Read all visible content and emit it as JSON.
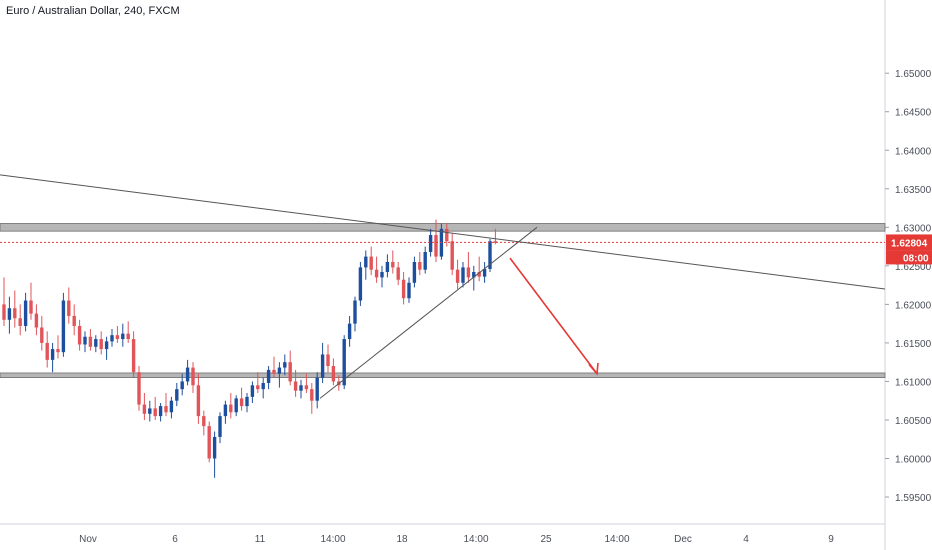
{
  "header": {
    "title": "Euro / Australian Dollar, 240, FXCM"
  },
  "colors": {
    "up": "#1e4f9e",
    "down": "#e0545a",
    "zone": "#9e9e9e",
    "arrow": "#e53935",
    "trend": "#555555"
  },
  "chart_data": {
    "type": "candlestick",
    "symbol": "Euro / Australian Dollar",
    "interval": "240",
    "source": "FXCM",
    "ylim": [
      1.5915,
      1.6595
    ],
    "y_ticks": [
      "1.59500",
      "1.60000",
      "1.60500",
      "1.61000",
      "1.61500",
      "1.62000",
      "1.62500",
      "1.63000",
      "1.63500",
      "1.64000",
      "1.64500",
      "1.65000"
    ],
    "x_ticks": [
      "Nov",
      "6",
      "11",
      "14:00",
      "18",
      "14:00",
      "25",
      "14:00",
      "Dec",
      "4",
      "9"
    ],
    "last_price": "1.62804",
    "countdown": "08:00",
    "resistance_zone": [
      1.6295,
      1.6305
    ],
    "support_zone": [
      1.6105,
      1.6111
    ],
    "candles": [
      [
        1.62,
        1.6235,
        1.6172,
        1.618
      ],
      [
        1.618,
        1.621,
        1.6162,
        1.6195
      ],
      [
        1.6195,
        1.6218,
        1.617,
        1.6182
      ],
      [
        1.6182,
        1.62,
        1.616,
        1.6172
      ],
      [
        1.6172,
        1.6215,
        1.6165,
        1.6205
      ],
      [
        1.6205,
        1.6228,
        1.618,
        1.6188
      ],
      [
        1.6188,
        1.62,
        1.616,
        1.617
      ],
      [
        1.617,
        1.6185,
        1.614,
        1.615
      ],
      [
        1.615,
        1.6165,
        1.6118,
        1.6128
      ],
      [
        1.6128,
        1.615,
        1.6112,
        1.6142
      ],
      [
        1.6142,
        1.616,
        1.613,
        1.6138
      ],
      [
        1.6138,
        1.6215,
        1.6132,
        1.6205
      ],
      [
        1.6205,
        1.6222,
        1.6175,
        1.6185
      ],
      [
        1.6185,
        1.62,
        1.616,
        1.6172
      ],
      [
        1.6172,
        1.618,
        1.614,
        1.6148
      ],
      [
        1.6148,
        1.6165,
        1.6138,
        1.6158
      ],
      [
        1.6158,
        1.6168,
        1.614,
        1.6145
      ],
      [
        1.6145,
        1.616,
        1.6138,
        1.6155
      ],
      [
        1.6155,
        1.6165,
        1.6135,
        1.6142
      ],
      [
        1.6142,
        1.6158,
        1.6128,
        1.6152
      ],
      [
        1.6152,
        1.6168,
        1.6145,
        1.616
      ],
      [
        1.616,
        1.6172,
        1.615,
        1.6155
      ],
      [
        1.6155,
        1.6175,
        1.6145,
        1.6162
      ],
      [
        1.6162,
        1.6178,
        1.615,
        1.6155
      ],
      [
        1.6155,
        1.6165,
        1.6105,
        1.6112
      ],
      [
        1.6112,
        1.612,
        1.6062,
        1.607
      ],
      [
        1.607,
        1.6085,
        1.605,
        1.6058
      ],
      [
        1.6058,
        1.6075,
        1.6048,
        1.6065
      ],
      [
        1.6065,
        1.608,
        1.605,
        1.6055
      ],
      [
        1.6055,
        1.6072,
        1.6048,
        1.6068
      ],
      [
        1.6068,
        1.6085,
        1.6055,
        1.606
      ],
      [
        1.606,
        1.608,
        1.6052,
        1.6075
      ],
      [
        1.6075,
        1.6098,
        1.6068,
        1.609
      ],
      [
        1.609,
        1.611,
        1.6082,
        1.61
      ],
      [
        1.61,
        1.6128,
        1.6095,
        1.6118
      ],
      [
        1.6118,
        1.6125,
        1.6085,
        1.6095
      ],
      [
        1.6095,
        1.611,
        1.6045,
        1.6055
      ],
      [
        1.6055,
        1.6062,
        1.603,
        1.6042
      ],
      [
        1.6042,
        1.6048,
        1.5995,
        1.6
      ],
      [
        1.6,
        1.6035,
        1.5975,
        1.6028
      ],
      [
        1.6028,
        1.606,
        1.602,
        1.6055
      ],
      [
        1.6055,
        1.6075,
        1.6045,
        1.607
      ],
      [
        1.607,
        1.6085,
        1.6052,
        1.606
      ],
      [
        1.606,
        1.6082,
        1.6055,
        1.6078
      ],
      [
        1.6078,
        1.6092,
        1.6062,
        1.6068
      ],
      [
        1.6068,
        1.6085,
        1.606,
        1.608
      ],
      [
        1.608,
        1.61,
        1.6072,
        1.6095
      ],
      [
        1.6095,
        1.6112,
        1.6085,
        1.609
      ],
      [
        1.609,
        1.6105,
        1.6078,
        1.6098
      ],
      [
        1.6098,
        1.612,
        1.609,
        1.6115
      ],
      [
        1.6115,
        1.6132,
        1.6105,
        1.611
      ],
      [
        1.611,
        1.6125,
        1.6092,
        1.6118
      ],
      [
        1.6118,
        1.6135,
        1.6108,
        1.6125
      ],
      [
        1.6125,
        1.614,
        1.6095,
        1.61
      ],
      [
        1.61,
        1.6115,
        1.608,
        1.6088
      ],
      [
        1.6088,
        1.6102,
        1.6078,
        1.6095
      ],
      [
        1.6095,
        1.611,
        1.6085,
        1.609
      ],
      [
        1.609,
        1.6098,
        1.6058,
        1.6075
      ],
      [
        1.6075,
        1.6112,
        1.6065,
        1.6105
      ],
      [
        1.6105,
        1.615,
        1.6098,
        1.6135
      ],
      [
        1.6135,
        1.6148,
        1.6112,
        1.612
      ],
      [
        1.612,
        1.613,
        1.6095,
        1.61
      ],
      [
        1.61,
        1.6108,
        1.6088,
        1.6095
      ],
      [
        1.6095,
        1.616,
        1.609,
        1.6155
      ],
      [
        1.6155,
        1.6185,
        1.6145,
        1.6175
      ],
      [
        1.6175,
        1.621,
        1.6165,
        1.6205
      ],
      [
        1.6205,
        1.6255,
        1.6198,
        1.6248
      ],
      [
        1.6248,
        1.627,
        1.6232,
        1.6262
      ],
      [
        1.6262,
        1.6275,
        1.6238,
        1.6245
      ],
      [
        1.6245,
        1.6262,
        1.6228,
        1.6235
      ],
      [
        1.6235,
        1.625,
        1.6222,
        1.6242
      ],
      [
        1.6242,
        1.6265,
        1.6235,
        1.6255
      ],
      [
        1.6255,
        1.627,
        1.624,
        1.6248
      ],
      [
        1.6248,
        1.6255,
        1.6225,
        1.6232
      ],
      [
        1.6232,
        1.6242,
        1.62,
        1.6208
      ],
      [
        1.6208,
        1.6235,
        1.6202,
        1.6228
      ],
      [
        1.6228,
        1.6262,
        1.6222,
        1.6255
      ],
      [
        1.6255,
        1.6268,
        1.6238,
        1.6245
      ],
      [
        1.6245,
        1.6275,
        1.624,
        1.6268
      ],
      [
        1.6268,
        1.6298,
        1.6262,
        1.629
      ],
      [
        1.629,
        1.631,
        1.6255,
        1.6262
      ],
      [
        1.6262,
        1.6305,
        1.6258,
        1.6298
      ],
      [
        1.6298,
        1.6305,
        1.6275,
        1.6282
      ],
      [
        1.6282,
        1.6292,
        1.6238,
        1.6245
      ],
      [
        1.6245,
        1.6258,
        1.622,
        1.6228
      ],
      [
        1.6228,
        1.6255,
        1.6222,
        1.6248
      ],
      [
        1.6248,
        1.6268,
        1.6228,
        1.6235
      ],
      [
        1.6235,
        1.625,
        1.6218,
        1.6242
      ],
      [
        1.6242,
        1.6262,
        1.623,
        1.6236
      ],
      [
        1.6236,
        1.6255,
        1.6228,
        1.6246
      ],
      [
        1.6246,
        1.6285,
        1.6242,
        1.6282
      ],
      [
        1.6282,
        1.6298,
        1.6278,
        1.628
      ]
    ]
  }
}
